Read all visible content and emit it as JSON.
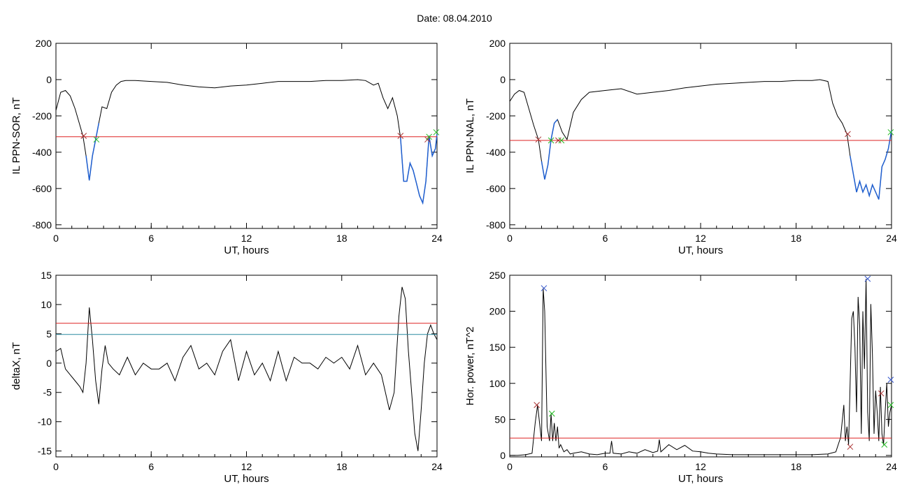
{
  "figure": {
    "title": "Date:  08.04.2010"
  },
  "colors": {
    "black": "#000000",
    "red": "#dd2222",
    "blue": "#1f5fd0",
    "teal": "#2a8aa0",
    "green": "#22bb22",
    "darkred": "#aa3333",
    "xblue": "#3355cc"
  },
  "chart_data": [
    {
      "id": "sor",
      "type": "line",
      "xlabel": "UT, hours",
      "ylabel": "IL PPN-SOR, nT",
      "xlim": [
        0,
        24
      ],
      "ylim": [
        -820,
        200
      ],
      "xticks": [
        0,
        6,
        12,
        18,
        24
      ],
      "yticks": [
        -800,
        -600,
        -400,
        -200,
        0,
        200
      ],
      "x": [
        0,
        0.3,
        0.6,
        0.9,
        1.2,
        1.5,
        1.7,
        1.9,
        2.1,
        2.3,
        2.5,
        2.7,
        2.9,
        3.2,
        3.5,
        3.8,
        4.1,
        4.4,
        4.7,
        5,
        6,
        7,
        8,
        9,
        10,
        11,
        12,
        13,
        14,
        15,
        16,
        17,
        18,
        19,
        19.5,
        20,
        20.3,
        20.6,
        20.9,
        21.2,
        21.5,
        21.7,
        21.9,
        22.1,
        22.3,
        22.5,
        22.7,
        22.9,
        23.1,
        23.3,
        23.5,
        23.7,
        23.9,
        24
      ],
      "y": [
        -170,
        -70,
        -60,
        -90,
        -160,
        -250,
        -310,
        -420,
        -555,
        -420,
        -330,
        -240,
        -150,
        -160,
        -70,
        -30,
        -10,
        -5,
        -5,
        -5,
        -10,
        -15,
        -30,
        -40,
        -45,
        -35,
        -30,
        -20,
        -10,
        -10,
        -10,
        -5,
        -5,
        0,
        -5,
        -30,
        -20,
        -100,
        -160,
        -100,
        -200,
        -320,
        -560,
        -560,
        -460,
        -500,
        -570,
        -640,
        -680,
        -560,
        -310,
        -420,
        -380,
        -300
      ],
      "series": [
        {
          "label_segments": [
            [
              1.9,
              2.7
            ],
            [
              21.7,
              24
            ]
          ]
        }
      ],
      "hlines": [
        {
          "y": -315,
          "color": "#dd2222"
        }
      ],
      "markers": [
        {
          "x": 1.75,
          "y": -310,
          "color": "#aa3333"
        },
        {
          "x": 2.55,
          "y": -330,
          "color": "#22bb22"
        },
        {
          "x": 21.7,
          "y": -310,
          "color": "#aa3333"
        },
        {
          "x": 23.4,
          "y": -330,
          "color": "#aa3333"
        },
        {
          "x": 23.5,
          "y": -315,
          "color": "#22bb22"
        },
        {
          "x": 23.95,
          "y": -290,
          "color": "#22bb22"
        }
      ]
    },
    {
      "id": "nal",
      "type": "line",
      "xlabel": "UT, hours",
      "ylabel": "IL PPN-NAL, nT",
      "xlim": [
        0,
        24
      ],
      "ylim": [
        -820,
        200
      ],
      "xticks": [
        0,
        6,
        12,
        18,
        24
      ],
      "yticks": [
        -800,
        -600,
        -400,
        -200,
        0,
        200
      ],
      "x": [
        0,
        0.3,
        0.6,
        0.9,
        1.2,
        1.5,
        1.8,
        2.0,
        2.2,
        2.4,
        2.6,
        2.8,
        3.0,
        3.3,
        3.6,
        4.0,
        4.5,
        5,
        6,
        7,
        8,
        9,
        10,
        11,
        12,
        13,
        14,
        15,
        16,
        17,
        18,
        19,
        19.5,
        20,
        20.3,
        20.6,
        20.9,
        21.2,
        21.4,
        21.6,
        21.8,
        22.0,
        22.2,
        22.4,
        22.6,
        22.8,
        23.0,
        23.2,
        23.4,
        23.6,
        23.8,
        24
      ],
      "y": [
        -120,
        -80,
        -60,
        -70,
        -160,
        -250,
        -330,
        -450,
        -550,
        -470,
        -330,
        -240,
        -220,
        -290,
        -330,
        -180,
        -110,
        -70,
        -60,
        -50,
        -80,
        -70,
        -60,
        -45,
        -35,
        -25,
        -20,
        -15,
        -10,
        -10,
        -5,
        -5,
        0,
        -10,
        -130,
        -200,
        -240,
        -300,
        -420,
        -520,
        -620,
        -560,
        -620,
        -580,
        -640,
        -580,
        -620,
        -660,
        -480,
        -440,
        -380,
        -280
      ],
      "label_segments": [
        [
          2.0,
          3.2
        ],
        [
          21.3,
          24
        ]
      ],
      "hlines": [
        {
          "y": -335,
          "color": "#dd2222"
        }
      ],
      "markers": [
        {
          "x": 1.8,
          "y": -330,
          "color": "#aa3333"
        },
        {
          "x": 2.6,
          "y": -335,
          "color": "#22bb22"
        },
        {
          "x": 3.05,
          "y": -335,
          "color": "#aa3333"
        },
        {
          "x": 3.25,
          "y": -335,
          "color": "#22bb22"
        },
        {
          "x": 21.25,
          "y": -300,
          "color": "#aa3333"
        },
        {
          "x": 23.95,
          "y": -290,
          "color": "#22bb22"
        }
      ]
    },
    {
      "id": "deltax",
      "type": "line",
      "xlabel": "UT, hours",
      "ylabel": "deltaX, nT",
      "xlim": [
        0,
        24
      ],
      "ylim": [
        -16,
        15
      ],
      "xticks": [
        0,
        6,
        12,
        18,
        24
      ],
      "yticks": [
        -15,
        -10,
        -5,
        0,
        5,
        10,
        15
      ],
      "x": [
        0,
        0.3,
        0.6,
        0.9,
        1.2,
        1.5,
        1.7,
        1.9,
        2.1,
        2.3,
        2.5,
        2.7,
        2.9,
        3.1,
        3.3,
        3.6,
        4,
        4.5,
        5,
        5.5,
        6,
        6.5,
        7,
        7.5,
        8,
        8.5,
        9,
        9.5,
        10,
        10.5,
        11,
        11.5,
        12,
        12.5,
        13,
        13.5,
        14,
        14.5,
        15,
        15.5,
        16,
        16.5,
        17,
        17.5,
        18,
        18.5,
        19,
        19.5,
        20,
        20.5,
        21,
        21.3,
        21.6,
        21.8,
        22,
        22.2,
        22.4,
        22.6,
        22.8,
        23,
        23.2,
        23.4,
        23.6,
        23.8,
        24
      ],
      "y": [
        2,
        2.5,
        -1,
        -2,
        -3,
        -4,
        -5,
        0,
        9.5,
        4,
        -3,
        -7,
        -1,
        3,
        0,
        -1,
        -2,
        1,
        -2,
        0,
        -1,
        -1,
        0,
        -3,
        1,
        3,
        -1,
        0,
        -2,
        2,
        4,
        -3,
        2,
        -2,
        0,
        -3,
        2,
        -3,
        1,
        0,
        0,
        -1,
        1,
        0,
        1,
        -1,
        3,
        -2,
        0,
        -2,
        -8,
        -5,
        8,
        13,
        11,
        2,
        -5,
        -12,
        -15,
        -8,
        0,
        5,
        6.5,
        5,
        4
      ],
      "hlines": [
        {
          "y": 6.8,
          "color": "#dd2222"
        },
        {
          "y": 4.9,
          "color": "#2a8aa0"
        }
      ],
      "markers": []
    },
    {
      "id": "power",
      "type": "line",
      "xlabel": "UT, hours",
      "ylabel": "Hor. power, nT^2",
      "xlim": [
        0,
        24
      ],
      "ylim": [
        -2,
        250
      ],
      "xticks": [
        0,
        6,
        12,
        18,
        24
      ],
      "yticks": [
        0,
        50,
        100,
        150,
        200,
        250
      ],
      "x": [
        0,
        0.5,
        1,
        1.4,
        1.6,
        1.75,
        1.9,
        2.0,
        2.1,
        2.2,
        2.35,
        2.5,
        2.6,
        2.7,
        2.8,
        2.9,
        3.0,
        3.1,
        3.2,
        3.4,
        3.6,
        3.8,
        4,
        4.5,
        5,
        5.5,
        6,
        6.3,
        6.4,
        6.5,
        7,
        7.5,
        8,
        8.5,
        9,
        9.3,
        9.4,
        9.5,
        10,
        10.5,
        11,
        11.5,
        12,
        12.5,
        13,
        14,
        15,
        16,
        17,
        18,
        19,
        20,
        20.5,
        20.8,
        21.0,
        21.1,
        21.2,
        21.3,
        21.4,
        21.5,
        21.6,
        21.7,
        21.8,
        21.9,
        22.0,
        22.1,
        22.2,
        22.3,
        22.4,
        22.5,
        22.6,
        22.7,
        22.8,
        22.9,
        23.0,
        23.1,
        23.2,
        23.3,
        23.4,
        23.5,
        23.6,
        23.7,
        23.8,
        23.9,
        24
      ],
      "y": [
        0,
        0,
        1,
        3,
        45,
        70,
        40,
        20,
        232,
        200,
        40,
        20,
        58,
        20,
        45,
        20,
        40,
        10,
        15,
        5,
        8,
        2,
        3,
        5,
        2,
        1,
        3,
        3,
        20,
        3,
        2,
        5,
        3,
        8,
        4,
        6,
        22,
        5,
        15,
        8,
        14,
        6,
        5,
        3,
        2,
        1,
        1,
        1,
        1,
        1,
        1,
        2,
        5,
        25,
        70,
        20,
        40,
        15,
        100,
        190,
        200,
        150,
        60,
        220,
        180,
        30,
        200,
        120,
        245,
        60,
        20,
        210,
        140,
        30,
        90,
        60,
        20,
        95,
        30,
        15,
        60,
        100,
        40,
        60,
        70
      ],
      "hlines": [
        {
          "y": 24,
          "color": "#dd2222"
        }
      ],
      "markers": [
        {
          "x": 1.7,
          "y": 70,
          "color": "#aa3333"
        },
        {
          "x": 2.15,
          "y": 232,
          "color": "#3355cc"
        },
        {
          "x": 2.65,
          "y": 58,
          "color": "#22bb22"
        },
        {
          "x": 21.4,
          "y": 12,
          "color": "#aa3333"
        },
        {
          "x": 22.5,
          "y": 245,
          "color": "#3355cc"
        },
        {
          "x": 23.35,
          "y": 86,
          "color": "#aa3333"
        },
        {
          "x": 23.55,
          "y": 15,
          "color": "#22bb22"
        },
        {
          "x": 23.95,
          "y": 105,
          "color": "#3355cc"
        },
        {
          "x": 23.95,
          "y": 70,
          "color": "#22bb22"
        }
      ]
    }
  ]
}
